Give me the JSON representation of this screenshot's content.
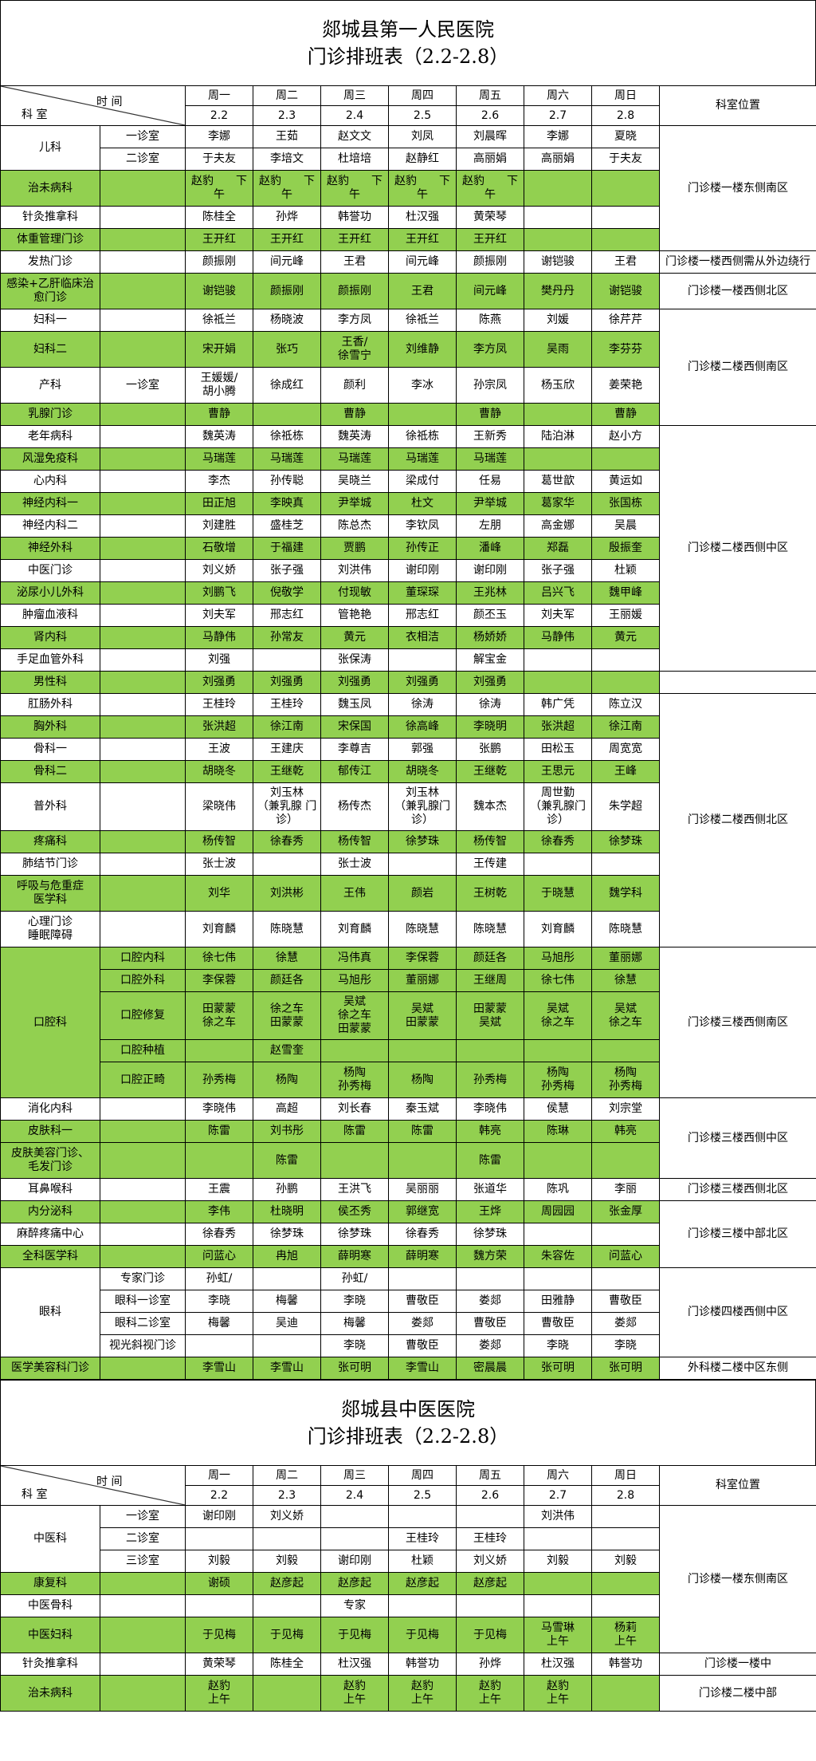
{
  "colors": {
    "highlight": "#92d050",
    "border": "#000000"
  },
  "header": {
    "time_label": "时 间",
    "dept_label": "科 室",
    "weekdays": [
      "周一",
      "周二",
      "周三",
      "周四",
      "周五",
      "周六",
      "周日"
    ],
    "dates": [
      "2.2",
      "2.3",
      "2.4",
      "2.5",
      "2.6",
      "2.7",
      "2.8"
    ],
    "location_label": "科室位置"
  },
  "tables": [
    {
      "hospital": "郯城县第一人民医院",
      "subtitle": "门诊排班表（2.2-2.8）",
      "rows": [
        {
          "dept": "儿科",
          "dept_span": 2,
          "room": "一诊室",
          "green": false,
          "cells": [
            "李娜",
            "王茹",
            "赵文文",
            "刘凤",
            "刘晨晖",
            "李娜",
            "夏晓"
          ],
          "loc": "门诊楼一楼东侧南区",
          "loc_span": 5
        },
        {
          "room": "二诊室",
          "green": false,
          "cells": [
            "于夫友",
            "李培文",
            "杜培培",
            "赵静红",
            "高丽娟",
            "高丽娟",
            "于夫友"
          ]
        },
        {
          "dept": "治未病科",
          "room": "",
          "green": true,
          "cells": [
            "赵豹　　下\n午",
            "赵豹　　下\n午",
            "赵豹　　下\n午",
            "赵豹　　下\n午",
            "赵豹　　下\n午",
            "",
            ""
          ]
        },
        {
          "dept": "针灸推拿科",
          "room": "",
          "green": false,
          "cells": [
            "陈桂全",
            "孙烨",
            "韩誉功",
            "杜汉强",
            "黄荣琴",
            "",
            ""
          ]
        },
        {
          "dept": "体重管理门诊",
          "room": "",
          "green": true,
          "cells": [
            "王开红",
            "王开红",
            "王开红",
            "王开红",
            "王开红",
            "",
            ""
          ]
        },
        {
          "dept": "发热门诊",
          "room": "",
          "green": false,
          "cells": [
            "颜振刚",
            "间元峰",
            "王君",
            "间元峰",
            "颜振刚",
            "谢铠骏",
            "王君"
          ],
          "loc": "门诊楼一楼西侧需从外边绕行",
          "loc_span": 1
        },
        {
          "dept": "感染+乙肝临床治\n愈门诊",
          "room": "",
          "green": true,
          "cells": [
            "谢铠骏",
            "颜振刚",
            "颜振刚",
            "王君",
            "间元峰",
            "樊丹丹",
            "谢铠骏"
          ],
          "loc": "门诊楼一楼西侧北区",
          "loc_span": 1
        },
        {
          "dept": "妇科一",
          "room": "",
          "green": false,
          "cells": [
            "徐祗兰",
            "杨晓波",
            "李方凤",
            "徐祗兰",
            "陈燕",
            "刘媛",
            "徐芹芹"
          ],
          "loc": "门诊楼二楼西侧南区",
          "loc_span": 4
        },
        {
          "dept": "妇科二",
          "room": "",
          "green": true,
          "cells": [
            "宋开娟",
            "张巧",
            "王香/\n徐雪宁",
            "刘维静",
            "李方凤",
            "吴雨",
            "李芬芬"
          ]
        },
        {
          "dept": "产科",
          "room": "一诊室",
          "green": false,
          "cells": [
            "王媛媛/\n胡小腾",
            "徐成红",
            "颜利",
            "李冰",
            "孙宗凤",
            "杨玉欣",
            "姜荣艳"
          ]
        },
        {
          "dept": "乳腺门诊",
          "room": "",
          "green": true,
          "cells": [
            "曹静",
            "",
            "曹静",
            "",
            "曹静",
            "",
            "曹静"
          ]
        },
        {
          "dept": "老年病科",
          "room": "",
          "green": false,
          "cells": [
            "魏英涛",
            "徐祗栋",
            "魏英涛",
            "徐祗栋",
            "王新秀",
            "陆泊淋",
            "赵小方"
          ],
          "loc": "门诊楼二楼西侧中区",
          "loc_span": 11
        },
        {
          "dept": "风湿免疫科",
          "room": "",
          "green": true,
          "cells": [
            "马瑞莲",
            "马瑞莲",
            "马瑞莲",
            "马瑞莲",
            "马瑞莲",
            "",
            ""
          ]
        },
        {
          "dept": "心内科",
          "room": "",
          "green": false,
          "cells": [
            "李杰",
            "孙传聪",
            "吴晓兰",
            "梁成付",
            "任易",
            "葛世歆",
            "黄运如"
          ]
        },
        {
          "dept": "神经内科一",
          "room": "",
          "green": true,
          "cells": [
            "田正旭",
            "李映真",
            "尹举城",
            "杜文",
            "尹举城",
            "葛家华",
            "张国栋"
          ]
        },
        {
          "dept": "神经内科二",
          "room": "",
          "green": false,
          "cells": [
            "刘建胜",
            "盛桂芝",
            "陈总杰",
            "李钦凤",
            "左朋",
            "高金娜",
            "吴晨"
          ]
        },
        {
          "dept": "神经外科",
          "room": "",
          "green": true,
          "cells": [
            "石敬增",
            "于福建",
            "贾鹏",
            "孙传正",
            "潘峰",
            "郑磊",
            "殷振奎"
          ]
        },
        {
          "dept": "中医门诊",
          "room": "",
          "green": false,
          "cells": [
            "刘义娇",
            "张子强",
            "刘洪伟",
            "谢印刚",
            "谢印刚",
            "张子强",
            "杜颖"
          ]
        },
        {
          "dept": "泌尿小儿外科",
          "room": "",
          "green": true,
          "cells": [
            "刘鹏飞",
            "倪敬学",
            "付现敏",
            "董琛琛",
            "王兆林",
            "吕兴飞",
            "魏甲峰"
          ]
        },
        {
          "dept": "肿瘤血液科",
          "room": "",
          "green": false,
          "cells": [
            "刘夫军",
            "邢志红",
            "管艳艳",
            "邢志红",
            "颜丕玉",
            "刘夫军",
            "王丽媛"
          ]
        },
        {
          "dept": "肾内科",
          "room": "",
          "green": true,
          "cells": [
            "马静伟",
            "孙常友",
            "黄元",
            "衣相洁",
            "杨娇娇",
            "马静伟",
            "黄元"
          ]
        },
        {
          "dept": "手足血管外科",
          "room": "",
          "green": false,
          "cells": [
            "刘强",
            "",
            "张保涛",
            "",
            "解宝金",
            "",
            ""
          ]
        },
        {
          "dept": "男性科",
          "room": "",
          "green": true,
          "cells": [
            "刘强勇",
            "刘强勇",
            "刘强勇",
            "刘强勇",
            "刘强勇",
            "",
            ""
          ],
          "loc": "",
          "loc_span": 1
        },
        {
          "dept": "肛肠外科",
          "room": "",
          "green": false,
          "cells": [
            "王桂玲",
            "王桂玲",
            "魏玉凤",
            "徐涛",
            "徐涛",
            "韩广凭",
            "陈立汉"
          ],
          "loc": "门诊楼二楼西侧北区",
          "loc_span": 9
        },
        {
          "dept": "胸外科",
          "room": "",
          "green": true,
          "cells": [
            "张洪超",
            "徐江南",
            "宋保国",
            "徐高峰",
            "李晓明",
            "张洪超",
            "徐江南"
          ]
        },
        {
          "dept": "骨科一",
          "room": "",
          "green": false,
          "cells": [
            "王波",
            "王建庆",
            "李尊吉",
            "郭强",
            "张鹏",
            "田松玉",
            "周宽宽"
          ]
        },
        {
          "dept": "骨科二",
          "room": "",
          "green": true,
          "cells": [
            "胡晓冬",
            "王继乾",
            "郁传江",
            "胡晓冬",
            "王继乾",
            "王思元",
            "王峰"
          ]
        },
        {
          "dept": "普外科",
          "room": "",
          "green": false,
          "cells": [
            "梁晓伟",
            "刘玉林\n（兼乳腺 门\n诊）",
            "杨传杰",
            "刘玉林\n（兼乳腺门\n诊）",
            "魏本杰",
            "周世勤\n（兼乳腺门\n诊）",
            "朱学超"
          ]
        },
        {
          "dept": "疼痛科",
          "room": "",
          "green": true,
          "cells": [
            "杨传智",
            "徐春秀",
            "杨传智",
            "徐梦珠",
            "杨传智",
            "徐春秀",
            "徐梦珠"
          ]
        },
        {
          "dept": "肺结节门诊",
          "room": "",
          "green": false,
          "cells": [
            "张士波",
            "",
            "张士波",
            "",
            "王传建",
            "",
            ""
          ]
        },
        {
          "dept": "呼吸与危重症\n医学科",
          "room": "",
          "green": true,
          "cells": [
            "刘华",
            "刘洪彬",
            "王伟",
            "颜岩",
            "王树乾",
            "于晓慧",
            "魏学科"
          ]
        },
        {
          "dept": "心理门诊\n睡眠障碍",
          "room": "",
          "green": false,
          "cells": [
            "刘育麟",
            "陈晓慧",
            "刘育麟",
            "陈晓慧",
            "陈晓慧",
            "刘育麟",
            "陈晓慧"
          ]
        },
        {
          "dept": "口腔科",
          "dept_span": 5,
          "room": "口腔内科",
          "green": true,
          "cells": [
            "徐七伟",
            "徐慧",
            "冯伟真",
            "李保蓉",
            "颜廷各",
            "马旭彤",
            "董丽娜"
          ],
          "loc": "门诊楼三楼西侧南区",
          "loc_span": 5
        },
        {
          "room": "口腔外科",
          "green": true,
          "cells": [
            "李保蓉",
            "颜廷各",
            "马旭彤",
            "董丽娜",
            "王继周",
            "徐七伟",
            "徐慧"
          ]
        },
        {
          "room": "口腔修复",
          "green": true,
          "cells": [
            "田蒙蒙\n徐之车",
            "徐之车\n田蒙蒙",
            "吴斌\n徐之车\n田蒙蒙",
            "吴斌\n田蒙蒙",
            "田蒙蒙\n吴斌",
            "吴斌\n徐之车",
            "吴斌\n徐之车"
          ]
        },
        {
          "room": "口腔种植",
          "green": true,
          "cells": [
            "",
            "赵雪奎",
            "",
            "",
            "",
            "",
            ""
          ]
        },
        {
          "room": "口腔正畸",
          "green": true,
          "cells": [
            "孙秀梅",
            "杨陶",
            "杨陶\n孙秀梅",
            "杨陶",
            "孙秀梅",
            "杨陶\n孙秀梅",
            "杨陶\n孙秀梅"
          ]
        },
        {
          "dept": "消化内科",
          "room": "",
          "green": false,
          "cells": [
            "李晓伟",
            "高超",
            "刘长春",
            "秦玉斌",
            "李晓伟",
            "侯慧",
            "刘宗堂"
          ],
          "loc": "门诊楼三楼西侧中区",
          "loc_span": 3
        },
        {
          "dept": "皮肤科一",
          "room": "",
          "green": true,
          "cells": [
            "陈雷",
            "刘书彤",
            "陈雷",
            "陈雷",
            "韩亮",
            "陈琳",
            "韩亮"
          ]
        },
        {
          "dept": "皮肤美容门诊、\n毛发门诊",
          "room": "",
          "green": true,
          "cells": [
            "",
            "陈雷",
            "",
            "",
            "陈雷",
            "",
            ""
          ]
        },
        {
          "dept": "耳鼻喉科",
          "room": "",
          "green": false,
          "cells": [
            "王震",
            "孙鹏",
            "王洪飞",
            "吴丽丽",
            "张道华",
            "陈巩",
            "李丽"
          ],
          "loc": "门诊楼三楼西侧北区",
          "loc_span": 1
        },
        {
          "dept": "内分泌科",
          "room": "",
          "green": true,
          "cells": [
            "李伟",
            "杜晓明",
            "侯丕秀",
            "郭继宽",
            "王烨",
            "周园园",
            "张金厚"
          ],
          "loc": "门诊楼三楼中部北区",
          "loc_span": 3
        },
        {
          "dept": "麻醉疼痛中心",
          "room": "",
          "green": false,
          "cells": [
            "徐春秀",
            "徐梦珠",
            "徐梦珠",
            "徐春秀",
            "徐梦珠",
            "",
            ""
          ]
        },
        {
          "dept": "全科医学科",
          "room": "",
          "green": true,
          "cells": [
            "问蓝心",
            "冉旭",
            "薛明寒",
            "薛明寒",
            "魏方荣",
            "朱容佐",
            "问蓝心"
          ]
        },
        {
          "dept": "眼科",
          "dept_span": 4,
          "room": "专家门诊",
          "green": false,
          "cells": [
            "孙虹/",
            "",
            "孙虹/",
            "",
            "",
            "",
            ""
          ],
          "loc": "门诊楼四楼西侧中区",
          "loc_span": 4
        },
        {
          "room": "眼科一诊室",
          "green": false,
          "cells": [
            "李晓",
            "梅馨",
            "李晓",
            "曹敬臣",
            "娄郯",
            "田雅静",
            "曹敬臣"
          ]
        },
        {
          "room": "眼科二诊室",
          "green": false,
          "cells": [
            "梅馨",
            "吴迪",
            "梅馨",
            "娄郯",
            "曹敬臣",
            "曹敬臣",
            "娄郯"
          ]
        },
        {
          "room": "视光斜视门诊",
          "green": false,
          "cells": [
            "",
            "",
            "李晓",
            "曹敬臣",
            "娄郯",
            "李晓",
            "李晓"
          ]
        },
        {
          "dept": "医学美容科门诊",
          "room": "",
          "green": true,
          "cells": [
            "李雪山",
            "李雪山",
            "张可明",
            "李雪山",
            "密晨晨",
            "张可明",
            "张可明"
          ],
          "loc": "外科楼二楼中区东侧",
          "loc_span": 1
        }
      ]
    },
    {
      "hospital": "郯城县中医医院",
      "subtitle": "门诊排班表（2.2-2.8）",
      "rows": [
        {
          "dept": "中医科",
          "dept_span": 3,
          "room": "一诊室",
          "green": false,
          "cells": [
            "谢印刚",
            "刘义娇",
            "",
            "",
            "",
            "刘洪伟",
            ""
          ],
          "loc": "门诊楼一楼东侧南区",
          "loc_span": 6
        },
        {
          "room": "二诊室",
          "green": false,
          "cells": [
            "",
            "",
            "",
            "王桂玲",
            "王桂玲",
            "",
            ""
          ]
        },
        {
          "room": "三诊室",
          "green": false,
          "cells": [
            "刘毅",
            "刘毅",
            "谢印刚",
            "杜颖",
            "刘义娇",
            "刘毅",
            "刘毅"
          ]
        },
        {
          "dept": "康复科",
          "room": "",
          "green": true,
          "cells": [
            "谢硕",
            "赵彦起",
            "赵彦起",
            "赵彦起",
            "赵彦起",
            "",
            ""
          ]
        },
        {
          "dept": "中医骨科",
          "room": "",
          "green": false,
          "cells": [
            "",
            "",
            "专家",
            "",
            "",
            "",
            ""
          ]
        },
        {
          "dept": "中医妇科",
          "room": "",
          "green": true,
          "cells": [
            "于见梅",
            "于见梅",
            "于见梅",
            "于见梅",
            "于见梅",
            "马雪琳\n上午",
            "杨莉\n上午"
          ]
        },
        {
          "dept": "针灸推拿科",
          "room": "",
          "green": false,
          "cells": [
            "黄荣琴",
            "陈桂全",
            "杜汉强",
            "韩誉功",
            "孙烨",
            "杜汉强",
            "韩誉功"
          ],
          "loc": "门诊楼一楼中",
          "loc_span": 1
        },
        {
          "dept": "治未病科",
          "room": "",
          "green": true,
          "cells": [
            "赵豹\n上午",
            "",
            "赵豹\n上午",
            "赵豹\n上午",
            "赵豹\n上午",
            "赵豹\n上午",
            ""
          ],
          "loc": "门诊楼二楼中部",
          "loc_span": 1
        }
      ]
    }
  ]
}
